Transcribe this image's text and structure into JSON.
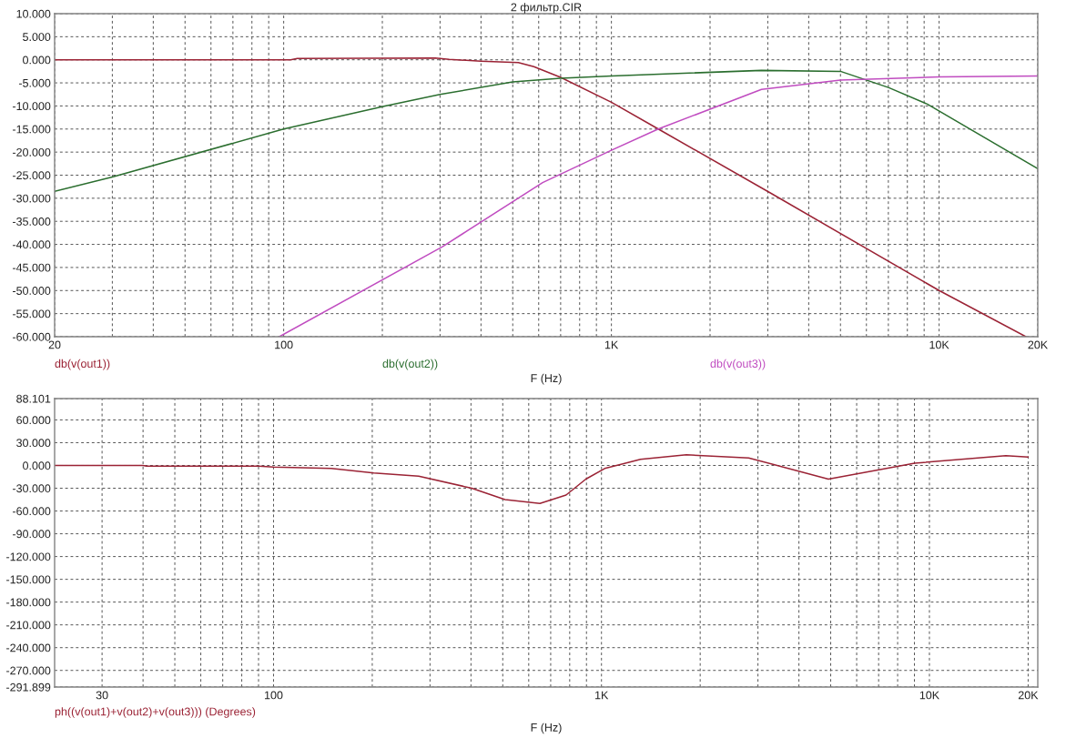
{
  "chart_data": [
    {
      "type": "line",
      "title": "2 фильтр.CIR",
      "xlabel": "F (Hz)",
      "log": "x",
      "grid": true,
      "legend": "bottom",
      "line_style": "solid",
      "marker": "none",
      "xlim": [
        20,
        20000
      ],
      "xticks": [
        {
          "value": 20,
          "label": "20"
        },
        {
          "value": 30,
          "label": null
        },
        {
          "value": 40,
          "label": null
        },
        {
          "value": 50,
          "label": null
        },
        {
          "value": 60,
          "label": null
        },
        {
          "value": 70,
          "label": null
        },
        {
          "value": 80,
          "label": null
        },
        {
          "value": 90,
          "label": null
        },
        {
          "value": 100,
          "label": "100"
        },
        {
          "value": 200,
          "label": null
        },
        {
          "value": 300,
          "label": null
        },
        {
          "value": 400,
          "label": null
        },
        {
          "value": 500,
          "label": null
        },
        {
          "value": 600,
          "label": null
        },
        {
          "value": 700,
          "label": null
        },
        {
          "value": 800,
          "label": null
        },
        {
          "value": 900,
          "label": null
        },
        {
          "value": 1000,
          "label": "1K"
        },
        {
          "value": 2000,
          "label": null
        },
        {
          "value": 3000,
          "label": null
        },
        {
          "value": 4000,
          "label": null
        },
        {
          "value": 5000,
          "label": null
        },
        {
          "value": 6000,
          "label": null
        },
        {
          "value": 7000,
          "label": null
        },
        {
          "value": 8000,
          "label": null
        },
        {
          "value": 9000,
          "label": null
        },
        {
          "value": 10000,
          "label": "10K"
        },
        {
          "value": 20000,
          "label": "20K"
        }
      ],
      "ylim": [
        -60,
        10
      ],
      "yticks": [
        {
          "value": 10,
          "label": "10.000"
        },
        {
          "value": 5,
          "label": "5.000"
        },
        {
          "value": 0,
          "label": "0.000"
        },
        {
          "value": -5,
          "label": "-5.000"
        },
        {
          "value": -10,
          "label": "-10.000"
        },
        {
          "value": -15,
          "label": "-15.000"
        },
        {
          "value": -20,
          "label": "-20.000"
        },
        {
          "value": -25,
          "label": "-25.000"
        },
        {
          "value": -30,
          "label": "-30.000"
        },
        {
          "value": -35,
          "label": "-35.000"
        },
        {
          "value": -40,
          "label": "-40.000"
        },
        {
          "value": -45,
          "label": "-45.000"
        },
        {
          "value": -50,
          "label": "-50.000"
        },
        {
          "value": -55,
          "label": "-55.000"
        },
        {
          "value": -60,
          "label": "-60.000"
        }
      ],
      "series": [
        {
          "name": "db(v(out1))",
          "color": "#9b2335",
          "x": [
            20,
            105,
            110,
            290,
            320,
            400,
            520,
            580,
            700,
            1000,
            1390,
            3080,
            10000,
            18400
          ],
          "values": [
            0,
            0,
            0.3,
            0.4,
            0.1,
            -0.3,
            -0.6,
            -1.5,
            -3.8,
            -9.2,
            -15,
            -29,
            -50,
            -60
          ]
        },
        {
          "name": "db(v(out2))",
          "color": "#2b6e2f",
          "x": [
            20,
            30,
            100,
            204,
            300,
            500,
            700,
            1000,
            2870,
            5000,
            7000,
            9200,
            20000
          ],
          "values": [
            -28.5,
            -25.4,
            -15,
            -10,
            -7.5,
            -4.8,
            -4,
            -3.5,
            -2.3,
            -2.5,
            -6,
            -9.6,
            -23.6
          ]
        },
        {
          "name": "db(v(out3))",
          "color": "#c04cc0",
          "x": [
            97,
            305,
            617,
            1000,
            1390,
            2870,
            5000,
            10000,
            20000
          ],
          "values": [
            -60,
            -40.5,
            -26.6,
            -19.6,
            -15,
            -6.4,
            -4.4,
            -3.7,
            -3.5
          ]
        }
      ]
    },
    {
      "type": "line",
      "xlabel": "F (Hz)",
      "log": "x",
      "grid": true,
      "legend": "bottom",
      "line_style": "solid",
      "marker": "none",
      "xlim": [
        21.5,
        21400
      ],
      "xticks": [
        {
          "value": 30,
          "label": "30"
        },
        {
          "value": 40,
          "label": null
        },
        {
          "value": 50,
          "label": null
        },
        {
          "value": 60,
          "label": null
        },
        {
          "value": 70,
          "label": null
        },
        {
          "value": 80,
          "label": null
        },
        {
          "value": 90,
          "label": null
        },
        {
          "value": 100,
          "label": "100"
        },
        {
          "value": 200,
          "label": null
        },
        {
          "value": 300,
          "label": null
        },
        {
          "value": 400,
          "label": null
        },
        {
          "value": 500,
          "label": null
        },
        {
          "value": 600,
          "label": null
        },
        {
          "value": 700,
          "label": null
        },
        {
          "value": 800,
          "label": null
        },
        {
          "value": 900,
          "label": null
        },
        {
          "value": 1000,
          "label": "1K"
        },
        {
          "value": 2000,
          "label": null
        },
        {
          "value": 3000,
          "label": null
        },
        {
          "value": 4000,
          "label": null
        },
        {
          "value": 5000,
          "label": null
        },
        {
          "value": 6000,
          "label": null
        },
        {
          "value": 7000,
          "label": null
        },
        {
          "value": 8000,
          "label": null
        },
        {
          "value": 9000,
          "label": null
        },
        {
          "value": 10000,
          "label": "10K"
        },
        {
          "value": 20000,
          "label": "20K"
        }
      ],
      "ylim": [
        -291.899,
        88.101
      ],
      "yticks": [
        {
          "value": 88.101,
          "label": "88.101"
        },
        {
          "value": 60,
          "label": "60.000"
        },
        {
          "value": 30,
          "label": "30.000"
        },
        {
          "value": 0,
          "label": "0.000"
        },
        {
          "value": -30,
          "label": "-30.000"
        },
        {
          "value": -60,
          "label": "-60.000"
        },
        {
          "value": -90,
          "label": "-90.000"
        },
        {
          "value": -120,
          "label": "-120.000"
        },
        {
          "value": -150,
          "label": "-150.000"
        },
        {
          "value": -180,
          "label": "-180.000"
        },
        {
          "value": -210,
          "label": "-210.000"
        },
        {
          "value": -240,
          "label": "-240.000"
        },
        {
          "value": -270,
          "label": "-270.000"
        },
        {
          "value": -291.899,
          "label": "-291.899"
        }
      ],
      "series": [
        {
          "name": "ph((v(out1)+v(out2)+v(out3))) (Degrees)",
          "color": "#9b2335",
          "x": [
            21.5,
            40,
            41,
            90,
            100,
            150,
            202,
            277,
            402,
            508,
            649,
            780,
            896,
            1023,
            1315,
            1815,
            2810,
            4920,
            9020,
            17100,
            20000
          ],
          "values": [
            0,
            0,
            -1,
            -1,
            -2,
            -4,
            -10,
            -14,
            -30,
            -45,
            -50,
            -39,
            -18,
            -4,
            8,
            14,
            10,
            -18,
            3,
            13,
            11
          ]
        }
      ]
    }
  ]
}
